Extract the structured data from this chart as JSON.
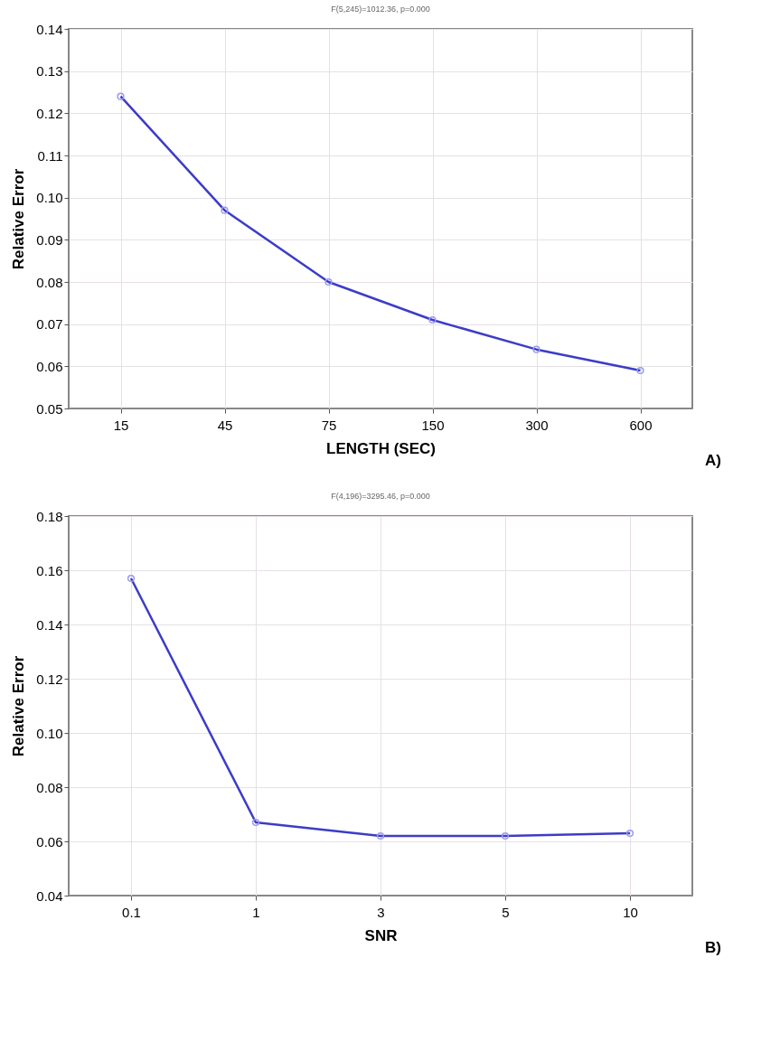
{
  "chart_data": [
    {
      "type": "line",
      "title": "F(5,245)=1012.36, p=0.000",
      "xlabel": "LENGTH (SEC)",
      "ylabel": "Relative Error",
      "categories": [
        "15",
        "45",
        "75",
        "150",
        "300",
        "600"
      ],
      "series": [
        {
          "color": "#3c3cc8",
          "values": [
            0.124,
            0.097,
            0.08,
            0.071,
            0.064,
            0.059
          ]
        }
      ],
      "ylim": [
        0.05,
        0.14
      ],
      "yticks": [
        {
          "value": 0.05,
          "label": "0.05"
        },
        {
          "value": 0.06,
          "label": "0.06"
        },
        {
          "value": 0.07,
          "label": "0.07"
        },
        {
          "value": 0.08,
          "label": "0.08"
        },
        {
          "value": 0.09,
          "label": "0.09"
        },
        {
          "value": 0.1,
          "label": "0.10"
        },
        {
          "value": 0.11,
          "label": "0.11"
        },
        {
          "value": 0.12,
          "label": "0.12"
        },
        {
          "value": 0.13,
          "label": "0.13"
        },
        {
          "value": 0.14,
          "label": "0.14"
        }
      ],
      "grid": true,
      "marker": "circle",
      "line_style": "solid",
      "annotations": [
        "A)"
      ]
    },
    {
      "type": "line",
      "title": "F(4,196)=3295.46, p=0.000",
      "xlabel": "SNR",
      "ylabel": "Relative Error",
      "categories": [
        "0.1",
        "1",
        "3",
        "5",
        "10"
      ],
      "series": [
        {
          "color": "#3c3cc8",
          "values": [
            0.157,
            0.067,
            0.062,
            0.062,
            0.063
          ]
        }
      ],
      "ylim": [
        0.04,
        0.18
      ],
      "yticks": [
        {
          "value": 0.04,
          "label": "0.04"
        },
        {
          "value": 0.06,
          "label": "0.06"
        },
        {
          "value": 0.08,
          "label": "0.08"
        },
        {
          "value": 0.1,
          "label": "0.10"
        },
        {
          "value": 0.12,
          "label": "0.12"
        },
        {
          "value": 0.14,
          "label": "0.14"
        },
        {
          "value": 0.16,
          "label": "0.16"
        },
        {
          "value": 0.18,
          "label": "0.18"
        }
      ],
      "grid": true,
      "marker": "circle",
      "line_style": "solid",
      "annotations": [
        "B)"
      ]
    }
  ]
}
